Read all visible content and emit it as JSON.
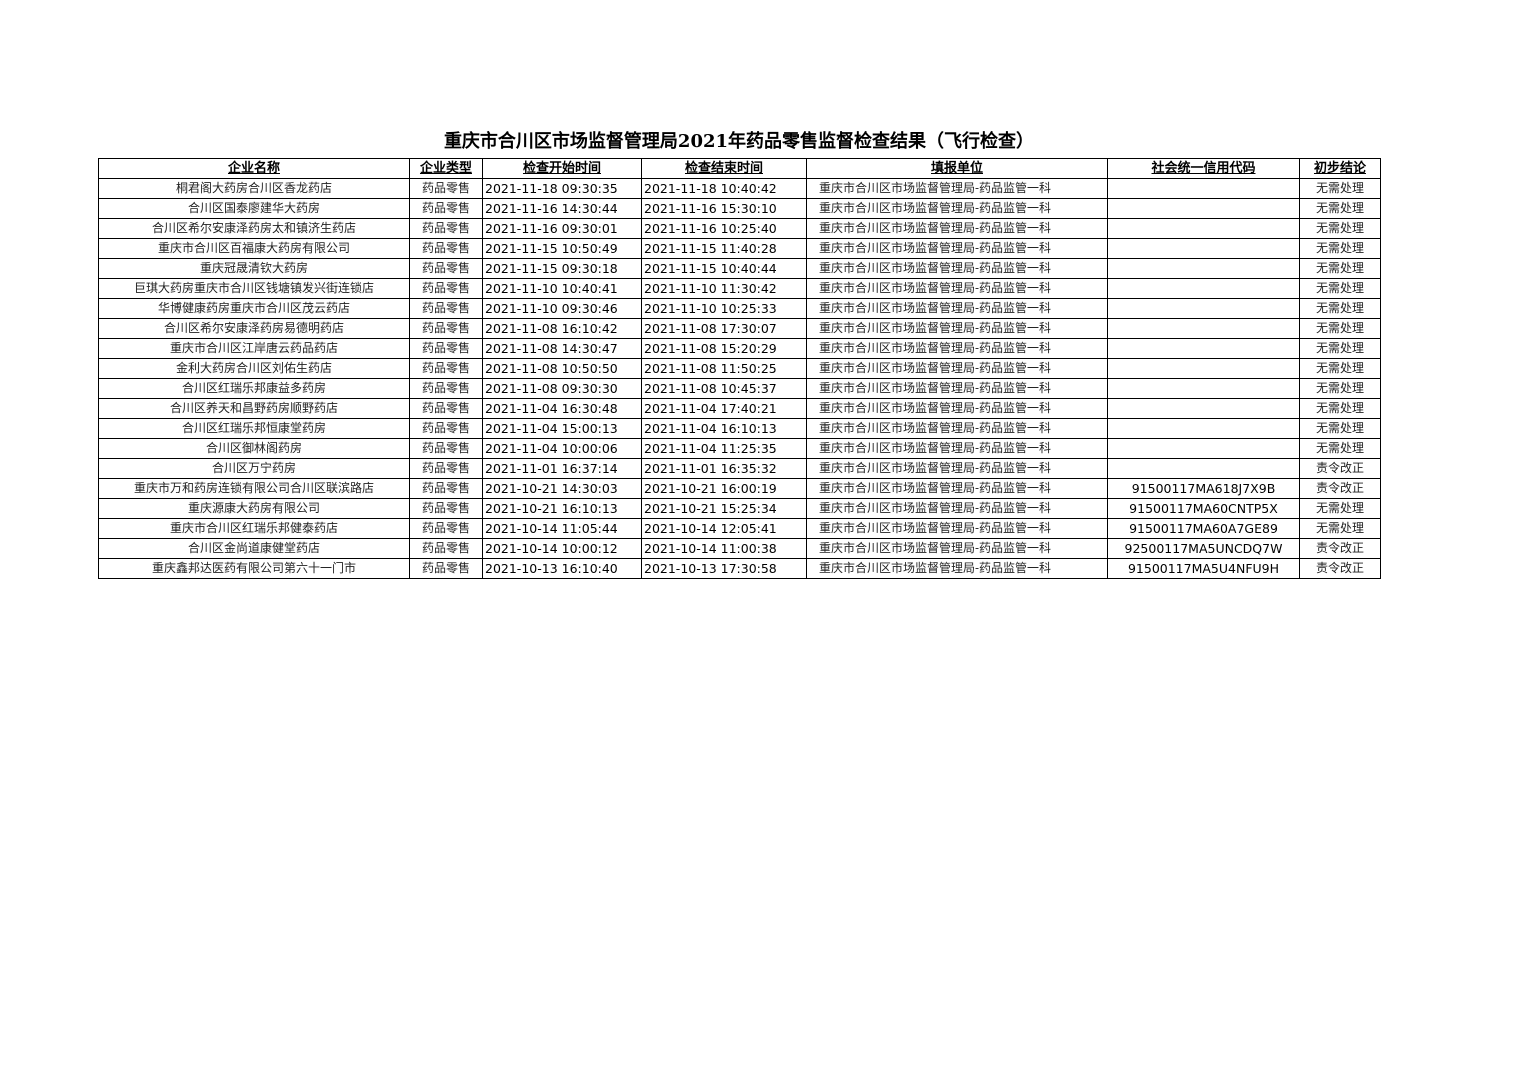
{
  "title": "重庆市合川区市场监督管理局2021年药品零售监督检查结果（飞行检查）",
  "table": {
    "headers": [
      "企业名称",
      "企业类型",
      "检查开始时间",
      "检查结束时间",
      "填报单位",
      "社会统一信用代码",
      "初步结论"
    ],
    "rows": [
      [
        "桐君阁大药房合川区香龙药店",
        "药品零售",
        "2021-11-18 09:30:35",
        "2021-11-18 10:40:42",
        "重庆市合川区市场监督管理局-药品监管一科",
        "",
        "无需处理"
      ],
      [
        "合川区国泰廖建华大药房",
        "药品零售",
        "2021-11-16 14:30:44",
        "2021-11-16 15:30:10",
        "重庆市合川区市场监督管理局-药品监管一科",
        "",
        "无需处理"
      ],
      [
        "合川区希尔安康泽药房太和镇济生药店",
        "药品零售",
        "2021-11-16 09:30:01",
        "2021-11-16 10:25:40",
        "重庆市合川区市场监督管理局-药品监管一科",
        "",
        "无需处理"
      ],
      [
        "重庆市合川区百福康大药房有限公司",
        "药品零售",
        "2021-11-15 10:50:49",
        "2021-11-15 11:40:28",
        "重庆市合川区市场监督管理局-药品监管一科",
        "",
        "无需处理"
      ],
      [
        "重庆冠晟清钦大药房",
        "药品零售",
        "2021-11-15 09:30:18",
        "2021-11-15 10:40:44",
        "重庆市合川区市场监督管理局-药品监管一科",
        "",
        "无需处理"
      ],
      [
        "巨琪大药房重庆市合川区钱塘镇发兴街连锁店",
        "药品零售",
        "2021-11-10 10:40:41",
        "2021-11-10 11:30:42",
        "重庆市合川区市场监督管理局-药品监管一科",
        "",
        "无需处理"
      ],
      [
        "华博健康药房重庆市合川区茂云药店",
        "药品零售",
        "2021-11-10 09:30:46",
        "2021-11-10 10:25:33",
        "重庆市合川区市场监督管理局-药品监管一科",
        "",
        "无需处理"
      ],
      [
        "合川区希尔安康泽药房易德明药店",
        "药品零售",
        "2021-11-08 16:10:42",
        "2021-11-08 17:30:07",
        "重庆市合川区市场监督管理局-药品监管一科",
        "",
        "无需处理"
      ],
      [
        "重庆市合川区江岸唐云药品药店",
        "药品零售",
        "2021-11-08 14:30:47",
        "2021-11-08 15:20:29",
        "重庆市合川区市场监督管理局-药品监管一科",
        "",
        "无需处理"
      ],
      [
        "金利大药房合川区刘佑生药店",
        "药品零售",
        "2021-11-08 10:50:50",
        "2021-11-08 11:50:25",
        "重庆市合川区市场监督管理局-药品监管一科",
        "",
        "无需处理"
      ],
      [
        "合川区红瑞乐邦康益多药房",
        "药品零售",
        "2021-11-08 09:30:30",
        "2021-11-08 10:45:37",
        "重庆市合川区市场监督管理局-药品监管一科",
        "",
        "无需处理"
      ],
      [
        "合川区养天和昌野药房顺野药店",
        "药品零售",
        "2021-11-04 16:30:48",
        "2021-11-04 17:40:21",
        "重庆市合川区市场监督管理局-药品监管一科",
        "",
        "无需处理"
      ],
      [
        "合川区红瑞乐邦恒康堂药房",
        "药品零售",
        "2021-11-04 15:00:13",
        "2021-11-04 16:10:13",
        "重庆市合川区市场监督管理局-药品监管一科",
        "",
        "无需处理"
      ],
      [
        "合川区御林阁药房",
        "药品零售",
        "2021-11-04 10:00:06",
        "2021-11-04 11:25:35",
        "重庆市合川区市场监督管理局-药品监管一科",
        "",
        "无需处理"
      ],
      [
        "合川区万宁药房",
        "药品零售",
        "2021-11-01 16:37:14",
        "2021-11-01 16:35:32",
        "重庆市合川区市场监督管理局-药品监管一科",
        "",
        "责令改正"
      ],
      [
        "重庆市万和药房连锁有限公司合川区联滨路店",
        "药品零售",
        "2021-10-21 14:30:03",
        "2021-10-21 16:00:19",
        "重庆市合川区市场监督管理局-药品监管一科",
        "91500117MA618J7X9B",
        "责令改正"
      ],
      [
        "重庆源康大药房有限公司",
        "药品零售",
        "2021-10-21 16:10:13",
        "2021-10-21 15:25:34",
        "重庆市合川区市场监督管理局-药品监管一科",
        "91500117MA60CNTP5X",
        "无需处理"
      ],
      [
        "重庆市合川区红瑞乐邦健泰药店",
        "药品零售",
        "2021-10-14 11:05:44",
        "2021-10-14 12:05:41",
        "重庆市合川区市场监督管理局-药品监管一科",
        "91500117MA60A7GE89",
        "无需处理"
      ],
      [
        "合川区金尚道康健堂药店",
        "药品零售",
        "2021-10-14 10:00:12",
        "2021-10-14 11:00:38",
        "重庆市合川区市场监督管理局-药品监管一科",
        "92500117MA5UNCDQ7W",
        "责令改正"
      ],
      [
        "重庆鑫邦达医药有限公司第六十一门市",
        "药品零售",
        "2021-10-13 16:10:40",
        "2021-10-13 17:30:58",
        "重庆市合川区市场监督管理局-药品监管一科",
        "91500117MA5U4NFU9H",
        "责令改正"
      ]
    ]
  }
}
